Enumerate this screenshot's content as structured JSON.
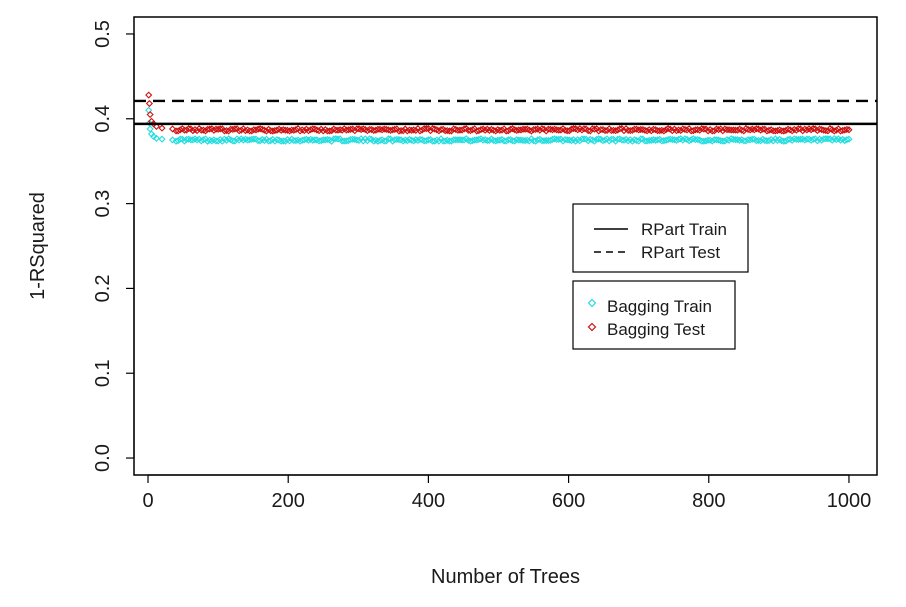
{
  "chart_data": {
    "type": "scatter",
    "title": "",
    "xlabel": "Number of Trees",
    "ylabel": "1-RSquared",
    "xlim": [
      -20,
      1040
    ],
    "ylim": [
      -0.02,
      0.52
    ],
    "x_ticks": [
      0,
      200,
      400,
      600,
      800,
      1000
    ],
    "x_tick_labels": [
      "0",
      "200",
      "400",
      "600",
      "800",
      "1000"
    ],
    "y_ticks": [
      0.0,
      0.1,
      0.2,
      0.3,
      0.4,
      0.5
    ],
    "y_tick_labels": [
      "0.0",
      "0.1",
      "0.2",
      "0.3",
      "0.4",
      "0.5"
    ],
    "grid": false,
    "reference_lines": [
      {
        "name": "RPart Train",
        "y": 0.394,
        "style": "solid",
        "color": "#000000"
      },
      {
        "name": "RPart Test",
        "y": 0.421,
        "style": "dashed",
        "color": "#000000"
      }
    ],
    "series": [
      {
        "name": "Bagging Train",
        "marker": "diamond",
        "color": "#22dde0",
        "x_range": [
          1,
          1000
        ],
        "start_points": [
          [
            1,
            0.41
          ],
          [
            2,
            0.395
          ],
          [
            3,
            0.388
          ],
          [
            5,
            0.382
          ],
          [
            8,
            0.379
          ],
          [
            12,
            0.377
          ],
          [
            20,
            0.376
          ],
          [
            35,
            0.375
          ]
        ],
        "plateau": 0.375
      },
      {
        "name": "Bagging Test",
        "marker": "diamond",
        "color": "#cc1111",
        "x_range": [
          1,
          1000
        ],
        "start_points": [
          [
            1,
            0.428
          ],
          [
            2,
            0.418
          ],
          [
            3,
            0.405
          ],
          [
            5,
            0.397
          ],
          [
            8,
            0.394
          ],
          [
            12,
            0.391
          ],
          [
            20,
            0.389
          ],
          [
            35,
            0.388
          ]
        ],
        "plateau": 0.387
      }
    ],
    "legends": [
      {
        "position": "right-middle",
        "entries": [
          {
            "label": "RPart Train",
            "kind": "line",
            "style": "solid"
          },
          {
            "label": "RPart Test",
            "kind": "line",
            "style": "dashed"
          }
        ]
      },
      {
        "position": "right-middle-lower",
        "entries": [
          {
            "label": "Bagging Train",
            "kind": "point",
            "color": "#22dde0"
          },
          {
            "label": "Bagging Test",
            "kind": "point",
            "color": "#cc1111"
          }
        ]
      }
    ]
  }
}
